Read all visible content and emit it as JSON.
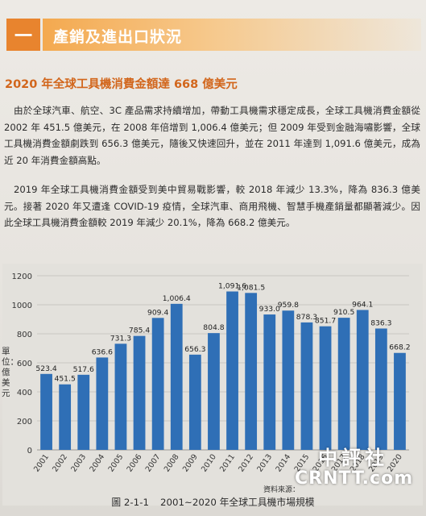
{
  "section": {
    "number": "一",
    "title": "產銷及進出口狀況"
  },
  "subheading": "2020 年全球工具機消費金額達 668 億美元",
  "paragraphs": [
    "由於全球汽車、航空、3C 產品需求持續增加，帶動工具機需求穩定成長，全球工具機消費金額從 2002 年 451.5 億美元，在 2008 年倍增到 1,006.4 億美元；但 2009 年受到金融海嘯影響，全球工具機消費金額劇跌到 656.3 億美元，隨後又快速回升，並在 2011 年達到 1,091.6 億美元，成為近 20 年消費金額高點。",
    "2019 年全球工具機消費金額受到美中貿易戰影響，較 2018 年減少 13.3%，降為 836.3 億美元。接著 2020 年又遭逢 COVID-19 疫情，全球汽車、商用飛機、智慧手機產銷量都顯著減少。因此全球工具機消費金額較 2019 年減少 20.1%，降為 668.2 億美元。"
  ],
  "chart_data": {
    "type": "bar",
    "categories": [
      "2001",
      "2002",
      "2003",
      "2004",
      "2005",
      "2006",
      "2007",
      "2008",
      "2009",
      "2010",
      "2011",
      "2012",
      "2013",
      "2014",
      "2015",
      "2016",
      "2017",
      "2018",
      "2019",
      "2020"
    ],
    "values": [
      523.4,
      451.5,
      517.6,
      636.6,
      731.3,
      785.4,
      909.4,
      1006.4,
      656.3,
      804.8,
      1091.6,
      1081.5,
      933.0,
      959.8,
      878.3,
      851.7,
      910.5,
      964.1,
      836.3,
      668.2
    ],
    "value_labels": [
      "523.4",
      "451.5",
      "517.6",
      "636.6",
      "731.3",
      "785.4",
      "909.4",
      "1,006.4",
      "656.3",
      "804.8",
      "1,091.6",
      "1,081.5",
      "933.0",
      "959.8",
      "878.3",
      "851.7",
      "910.5",
      "964.1",
      "836.3",
      "668.2"
    ],
    "ylim": [
      0,
      1200
    ],
    "yticks": [
      0,
      200,
      400,
      600,
      800,
      1000,
      1200
    ],
    "ylabel": "單位：億美元",
    "grid": true,
    "bar_color": "#2f6fb6"
  },
  "source": "資料來源：",
  "caption": {
    "number": "圖 2-1-1",
    "text": "2001~2020 年全球工具機市場規模"
  },
  "watermark": {
    "line1": "中評社",
    "line2": "CRNTT.com"
  }
}
